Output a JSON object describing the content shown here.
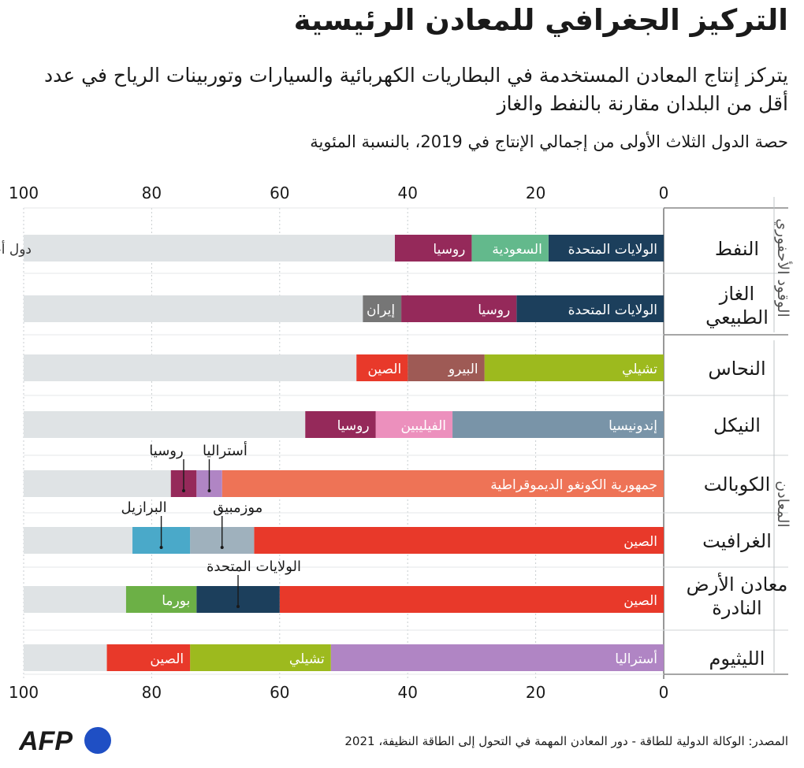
{
  "header": {
    "title": "التركيز الجغرافي للمعادن الرئيسية",
    "subtitle": "يتركز إنتاج المعادن المستخدمة في البطاريات الكهربائية والسيارات وتوربينات الرياح في عدد أقل من البلدان مقارنة بالنفط والغاز",
    "note": "حصة الدول الثلاث الأولى من إجمالي الإنتاج في 2019، بالنسبة المئوية"
  },
  "footer": {
    "source": "المصدر: الوكالة الدولية للطاقة - دور المعادن المهمة في التحول إلى الطاقة النظيفة، 2021",
    "logo_text": "AFP"
  },
  "colors": {
    "other": "#dfe3e5",
    "usa": "#1c3f5c",
    "saudi": "#63b98c",
    "russia": "#95295a",
    "iran": "#767676",
    "chile": "#9dba1e",
    "peru": "#9e5a55",
    "china": "#e8392a",
    "indonesia": "#7994a8",
    "philippines": "#ec90bd",
    "drc": "#ee7356",
    "australia": "#b085c4",
    "brazil": "#4aa9c9",
    "mozambique": "#9fb1bd",
    "myanmar": "#6cb046"
  },
  "chart_data": {
    "type": "bar",
    "orientation": "horizontal-stacked",
    "xlim": [
      0,
      100
    ],
    "xticks": [
      0,
      20,
      40,
      60,
      80,
      100
    ],
    "other_label": "دول أخرى",
    "groups": [
      {
        "label": "الوقود الأحفوري",
        "categories": [
          0,
          1
        ]
      },
      {
        "label": "المعادن",
        "categories": [
          2,
          3,
          4,
          5,
          6,
          7
        ]
      }
    ],
    "categories": [
      {
        "name": "النفط",
        "segments": [
          {
            "country": "الولايات المتحدة",
            "value": 18,
            "color": "usa"
          },
          {
            "country": "السعودية",
            "value": 12,
            "color": "saudi"
          },
          {
            "country": "روسيا",
            "value": 12,
            "color": "russia"
          }
        ]
      },
      {
        "name": "الغاز الطبيعي",
        "segments": [
          {
            "country": "الولايات المتحدة",
            "value": 23,
            "color": "usa"
          },
          {
            "country": "روسيا",
            "value": 18,
            "color": "russia"
          },
          {
            "country": "إيران",
            "value": 6,
            "color": "iran"
          }
        ]
      },
      {
        "name": "النحاس",
        "segments": [
          {
            "country": "تشيلي",
            "value": 28,
            "color": "chile"
          },
          {
            "country": "البيرو",
            "value": 12,
            "color": "peru"
          },
          {
            "country": "الصين",
            "value": 8,
            "color": "china"
          }
        ]
      },
      {
        "name": "النيكل",
        "segments": [
          {
            "country": "إندونيسيا",
            "value": 33,
            "color": "indonesia"
          },
          {
            "country": "الفيليبين",
            "value": 12,
            "color": "philippines"
          },
          {
            "country": "روسيا",
            "value": 11,
            "color": "russia"
          }
        ]
      },
      {
        "name": "الكوبالت",
        "segments": [
          {
            "country": "جمهورية الكونغو الديموقراطية",
            "value": 69,
            "color": "drc"
          },
          {
            "country": "أستراليا",
            "value": 4,
            "color": "australia",
            "callout": true
          },
          {
            "country": "روسيا",
            "value": 4,
            "color": "russia",
            "callout": true
          }
        ]
      },
      {
        "name": "الغرافيت",
        "segments": [
          {
            "country": "الصين",
            "value": 64,
            "color": "china"
          },
          {
            "country": "موزمبيق",
            "value": 10,
            "color": "mozambique",
            "callout": true
          },
          {
            "country": "البرازيل",
            "value": 9,
            "color": "brazil",
            "callout": true
          }
        ]
      },
      {
        "name": "معادن الأرض النادرة",
        "segments": [
          {
            "country": "الصين",
            "value": 60,
            "color": "china"
          },
          {
            "country": "الولايات المتحدة",
            "value": 13,
            "color": "usa",
            "callout": true
          },
          {
            "country": "بورما",
            "value": 11,
            "color": "myanmar"
          }
        ]
      },
      {
        "name": "الليثيوم",
        "segments": [
          {
            "country": "أستراليا",
            "value": 52,
            "color": "australia"
          },
          {
            "country": "تشيلي",
            "value": 22,
            "color": "chile"
          },
          {
            "country": "الصين",
            "value": 13,
            "color": "china"
          }
        ]
      }
    ]
  }
}
